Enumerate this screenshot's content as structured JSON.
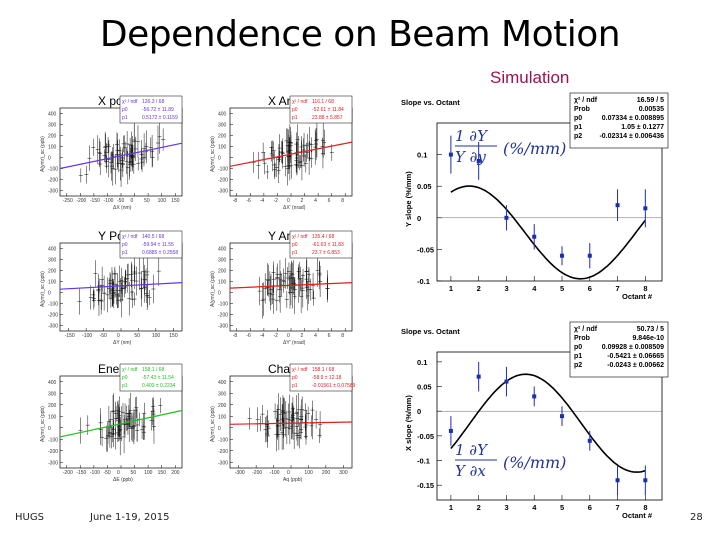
{
  "slide": {
    "title": "Dependence on Beam Motion",
    "simulation_label": "Simulation",
    "footer_left": "HUGS",
    "footer_date": "June 1-19, 2015",
    "page_number": "28"
  },
  "colors": {
    "purple": "#6633ee",
    "red": "#e02020",
    "green": "#20c020",
    "blue": "#1a2eb0",
    "title_red": "#a01050"
  },
  "chart_data": [
    {
      "type": "scatter",
      "title": "X position",
      "xlabel": "ΔX (nm)",
      "ylabel": "A(ymr)_sc (ppb)",
      "fit_color": "purple",
      "fit": {
        "y0": -150,
        "y1": 80
      },
      "xlim": [
        -250,
        200
      ],
      "ylim": [
        -400,
        400
      ],
      "xticks": [
        "-250",
        "-200",
        "-150",
        "-100",
        "-50",
        "0",
        "50",
        "100",
        "150"
      ],
      "yticks": [
        "400",
        "300",
        "200",
        "100",
        "0",
        "-100",
        "-200",
        "-300"
      ],
      "stats": [
        [
          "χ² / ndf",
          "126.3 / 68"
        ],
        [
          "p0",
          "-56.72 ± 11.89"
        ],
        [
          "p1",
          "0.5172 ± 0.1159"
        ]
      ]
    },
    {
      "type": "scatter",
      "title": "X Angle",
      "xlabel": "ΔX' (nrad)",
      "ylabel": "A(ymr)_sc (ppb)",
      "fit_color": "red",
      "fit": {
        "y0": -130,
        "y1": 90
      },
      "xlim": [
        -8,
        8
      ],
      "ylim": [
        -400,
        400
      ],
      "xticks": [
        "-8",
        "-6",
        "-4",
        "-2",
        "0",
        "2",
        "4",
        "6",
        "8"
      ],
      "yticks": [
        "400",
        "300",
        "200",
        "100",
        "0",
        "-100",
        "-200",
        "-300"
      ],
      "stats": [
        [
          "χ² / ndf",
          "116.1 / 68"
        ],
        [
          "p0",
          "-52.61 ± 11.84"
        ],
        [
          "p1",
          "23.88 ± 5.857"
        ]
      ]
    },
    {
      "type": "scatter",
      "title": "Y Position",
      "xlabel": "ΔY (nm)",
      "ylabel": "A(ymr)_sc (ppb)",
      "fit_color": "purple",
      "fit": {
        "y0": -20,
        "y1": 40
      },
      "xlim": [
        -150,
        150
      ],
      "ylim": [
        -400,
        400
      ],
      "xticks": [
        "-150",
        "-100",
        "-50",
        "0",
        "50",
        "100",
        "150"
      ],
      "yticks": [
        "400",
        "300",
        "200",
        "100",
        "0",
        "-100",
        "-200",
        "-300"
      ],
      "stats": [
        [
          "χ² / ndf",
          "140.5 / 68"
        ],
        [
          "p0",
          "-59.94 ± 11.55"
        ],
        [
          "p1",
          "0.6885 ± 0.2558"
        ]
      ]
    },
    {
      "type": "scatter",
      "title": "Y Angle",
      "xlabel": "ΔY' (nrad)",
      "ylabel": "A(ymr)_sc (ppb)",
      "fit_color": "red",
      "fit": {
        "y0": -10,
        "y1": 40
      },
      "xlim": [
        -8,
        8
      ],
      "ylim": [
        -400,
        400
      ],
      "xticks": [
        "-8",
        "-6",
        "-4",
        "-2",
        "0",
        "2",
        "4",
        "6",
        "8"
      ],
      "yticks": [
        "400",
        "300",
        "200",
        "100",
        "0",
        "-100",
        "-200",
        "-300"
      ],
      "stats": [
        [
          "χ² / ndf",
          "135.4 / 68"
        ],
        [
          "p0",
          "-61.63 ± 11.83"
        ],
        [
          "p1",
          "23.7 ± 6.853"
        ]
      ]
    },
    {
      "type": "scatter",
      "title": "Energy",
      "xlabel": "ΔE (ppb)",
      "ylabel": "A(ymr)_sc (ppb)",
      "fit_color": "green",
      "fit": {
        "y0": -130,
        "y1": 100
      },
      "xlim": [
        -200,
        200
      ],
      "ylim": [
        -400,
        400
      ],
      "xticks": [
        "-200",
        "-150",
        "-100",
        "-50",
        "0",
        "50",
        "100",
        "150",
        "200"
      ],
      "yticks": [
        "400",
        "300",
        "200",
        "100",
        "0",
        "-100",
        "-200",
        "-300"
      ],
      "stats": [
        [
          "χ² / ndf",
          "158.1 / 68"
        ],
        [
          "p0",
          "-57.43 ± 11.54"
        ],
        [
          "p1",
          "0.403 ± 0.2234"
        ]
      ]
    },
    {
      "type": "scatter",
      "title": "Charge",
      "xlabel": "Aq (ppb)",
      "ylabel": "A(ymr)_sc (ppb)",
      "fit_color": "red",
      "fit": {
        "y0": -20,
        "y1": 0
      },
      "xlim": [
        -300,
        300
      ],
      "ylim": [
        -400,
        400
      ],
      "xticks": [
        "-300",
        "-200",
        "-100",
        "0",
        "100",
        "200",
        "300"
      ],
      "yticks": [
        "400",
        "300",
        "200",
        "100",
        "0",
        "-100",
        "-200",
        "-300"
      ],
      "stats": [
        [
          "χ² / ndf",
          "158.1 / 68"
        ],
        [
          "p0",
          "-58.9 ± 12.18"
        ],
        [
          "p1",
          "-0.01561 ± 0.07589"
        ]
      ]
    },
    {
      "type": "scatter",
      "title": "Slope vs. Octant",
      "xlabel": "Octant #",
      "ylabel": "Y slope (%/mm)",
      "x": [
        1,
        2,
        3,
        4,
        5,
        6,
        7,
        8
      ],
      "y": [
        0.1,
        0.09,
        0.0,
        -0.03,
        -0.06,
        -0.06,
        0.02,
        0.015
      ],
      "yerr": [
        0.03,
        0.03,
        0.02,
        0.02,
        0.015,
        0.02,
        0.025,
        0.03
      ],
      "xlim": [
        0.5,
        8.6
      ],
      "ylim": [
        -0.1,
        0.15
      ],
      "xticks": [
        "1",
        "2",
        "3",
        "4",
        "5",
        "6",
        "7",
        "8"
      ],
      "yticks": [
        "0.1",
        "0.05",
        "0",
        "-0.05",
        "-0.1"
      ],
      "fit": {
        "p0": 0.07334,
        "p1": 1.05,
        "p2": -0.02314
      },
      "stats": [
        [
          "χ² / ndf",
          "16.59 / 5"
        ],
        [
          "Prob",
          "0.00535"
        ],
        [
          "p0",
          "0.07334 ± 0.008895"
        ],
        [
          "p1",
          "1.05 ± 0.1277"
        ],
        [
          "p2",
          "-0.02314 ± 0.006436"
        ]
      ],
      "formula_top": "1  ∂Y",
      "formula_bot": "Y  ∂y",
      "formula_unit": "(%/mm)"
    },
    {
      "type": "scatter",
      "title": "Slope vs. Octant",
      "xlabel": "Octant #",
      "ylabel": "X slope (%/mm)",
      "x": [
        1,
        2,
        3,
        4,
        5,
        6,
        7,
        8
      ],
      "y": [
        -0.04,
        0.07,
        0.06,
        0.03,
        -0.01,
        -0.06,
        -0.14,
        -0.14
      ],
      "yerr": [
        0.03,
        0.03,
        0.03,
        0.02,
        0.02,
        0.02,
        0.03,
        0.03
      ],
      "xlim": [
        0.5,
        8.6
      ],
      "ylim": [
        -0.18,
        0.12
      ],
      "xticks": [
        "1",
        "2",
        "3",
        "4",
        "5",
        "6",
        "7",
        "8"
      ],
      "yticks": [
        "0.1",
        "0.05",
        "0",
        "-0.05",
        "-0.1",
        "-0.15"
      ],
      "fit": {
        "p0": 0.09928,
        "p1": -0.5421,
        "p2": -0.0243
      },
      "stats": [
        [
          "χ² / ndf",
          "50.73 / 5"
        ],
        [
          "Prob",
          "9.846e-10"
        ],
        [
          "p0",
          "0.09928 ± 0.008509"
        ],
        [
          "p1",
          "-0.5421 ± 0.06665"
        ],
        [
          "p2",
          "-0.0243 ± 0.00662"
        ]
      ],
      "formula_top": "1  ∂Y",
      "formula_bot": "Y  ∂x",
      "formula_unit": "(%/mm)"
    }
  ]
}
